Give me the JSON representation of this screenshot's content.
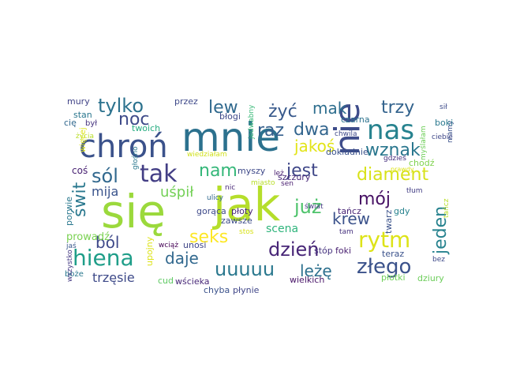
{
  "words": [
    {
      "text": "się",
      "color": "#9bd93c"
    },
    {
      "text": "jak",
      "color": "#b5de2b"
    },
    {
      "text": "mnie",
      "color": "#2c718e"
    },
    {
      "text": "chroń",
      "color": "#3b528b"
    },
    {
      "text": "nas",
      "color": "#26828e"
    },
    {
      "text": "nie",
      "color": "#3e4c8a"
    },
    {
      "text": "hiena",
      "color": "#1f9e89"
    },
    {
      "text": "tak",
      "color": "#433e85"
    },
    {
      "text": "rytm",
      "color": "#dde318"
    },
    {
      "text": "złego",
      "color": "#3b528b"
    },
    {
      "text": "dzień",
      "color": "#482677"
    },
    {
      "text": "uuuuu",
      "color": "#2a788e"
    },
    {
      "text": "tylko",
      "color": "#2c728e"
    },
    {
      "text": "sól",
      "color": "#31688e"
    },
    {
      "text": "raz",
      "color": "#35608d"
    },
    {
      "text": "noc",
      "color": "#3e4a89"
    },
    {
      "text": "lew",
      "color": "#30698e"
    },
    {
      "text": "żyć",
      "color": "#38598c"
    },
    {
      "text": "trzy",
      "color": "#33638d"
    },
    {
      "text": "mak",
      "color": "#2e6e8e"
    },
    {
      "text": "dwa",
      "color": "#32658e"
    },
    {
      "text": "wznak",
      "color": "#2a778e"
    },
    {
      "text": "jakoś",
      "color": "#e2e418"
    },
    {
      "text": "diament",
      "color": "#d8e219"
    },
    {
      "text": "jest",
      "color": "#3f4788"
    },
    {
      "text": "nam",
      "color": "#35b779"
    },
    {
      "text": "mija",
      "color": "#3a548c"
    },
    {
      "text": "uśpił",
      "color": "#73d056"
    },
    {
      "text": "już",
      "color": "#4ec36b"
    },
    {
      "text": "mój",
      "color": "#471164"
    },
    {
      "text": "krew",
      "color": "#3b528b"
    },
    {
      "text": "jeden",
      "color": "#26828e"
    },
    {
      "text": "świt",
      "color": "#2a788e"
    },
    {
      "text": "seks",
      "color": "#fde725"
    },
    {
      "text": "ból",
      "color": "#3e4989"
    },
    {
      "text": "daje",
      "color": "#31688e"
    },
    {
      "text": "leżę",
      "color": "#2d708e"
    },
    {
      "text": "trzęsie",
      "color": "#3e4a89"
    },
    {
      "text": "prowadź",
      "color": "#7ad151"
    },
    {
      "text": "scena",
      "color": "#2fb47c"
    },
    {
      "text": "stóp",
      "color": "#46337f"
    },
    {
      "text": "foki",
      "color": "#481f70"
    },
    {
      "text": "tańcz",
      "color": "#482475"
    },
    {
      "text": "twarz",
      "color": "#3b528b"
    },
    {
      "text": "gdy",
      "color": "#26828e"
    },
    {
      "text": "teraz",
      "color": "#3b528b"
    },
    {
      "text": "płotki",
      "color": "#6ece58"
    },
    {
      "text": "dziury",
      "color": "#6ccd5a"
    },
    {
      "text": "wielkich",
      "color": "#481467"
    },
    {
      "text": "płynie",
      "color": "#404688"
    },
    {
      "text": "wścieka",
      "color": "#482878"
    },
    {
      "text": "cud",
      "color": "#5ec962"
    },
    {
      "text": "boże",
      "color": "#2a788e"
    },
    {
      "text": "wszystko",
      "color": "#443983"
    },
    {
      "text": "jaś",
      "color": "#38588c"
    },
    {
      "text": "porwie",
      "color": "#2a788e"
    },
    {
      "text": "wciąż",
      "color": "#440154"
    },
    {
      "text": "unosi",
      "color": "#404688"
    },
    {
      "text": "gorąca",
      "color": "#3e4989"
    },
    {
      "text": "płoty",
      "color": "#482576"
    },
    {
      "text": "ulicy",
      "color": "#31688e"
    },
    {
      "text": "nic",
      "color": "#482878"
    },
    {
      "text": "myszy",
      "color": "#3e4989"
    },
    {
      "text": "szczury",
      "color": "#482878"
    },
    {
      "text": "miasto",
      "color": "#b8de29"
    },
    {
      "text": "sen",
      "color": "#481d6f"
    },
    {
      "text": "świat",
      "color": "#443a83"
    },
    {
      "text": "tłum",
      "color": "#433e85"
    },
    {
      "text": "tam",
      "color": "#46327e"
    },
    {
      "text": "bez",
      "color": "#3e4a89"
    },
    {
      "text": "chodź",
      "color": "#7fd34e"
    },
    {
      "text": "gdzieś",
      "color": "#46307e"
    },
    {
      "text": "prawdy",
      "color": "#dde318"
    },
    {
      "text": "myślałam",
      "color": "#6ece58"
    },
    {
      "text": "mamy",
      "color": "#3b518b"
    },
    {
      "text": "ciebie",
      "color": "#3f4788"
    },
    {
      "text": "boki",
      "color": "#2a788e"
    },
    {
      "text": "sił",
      "color": "#3e4c8a"
    },
    {
      "text": "chwila",
      "color": "#3e4989"
    },
    {
      "text": "czarna",
      "color": "#2c728e"
    },
    {
      "text": "jedwabny",
      "color": "#38b977"
    },
    {
      "text": "przez",
      "color": "#3e4989"
    },
    {
      "text": "mury",
      "color": "#404387"
    },
    {
      "text": "stan",
      "color": "#2a768e"
    },
    {
      "text": "cię",
      "color": "#31688e"
    },
    {
      "text": "był",
      "color": "#46337f"
    },
    {
      "text": "twoich",
      "color": "#27ad81"
    },
    {
      "text": "życia",
      "color": "#b8de29"
    },
    {
      "text": "więcej",
      "color": "#dde318"
    },
    {
      "text": "głośno",
      "color": "#2a788e"
    },
    {
      "text": "coś",
      "color": "#482173"
    },
    {
      "text": "chyba",
      "color": "#3b528b"
    },
    {
      "text": "błogi",
      "color": "#3e4989"
    },
    {
      "text": "upojny",
      "color": "#dde318"
    },
    {
      "text": "wiedziałam",
      "color": "#d0e11c"
    },
    {
      "text": "zawsze",
      "color": "#3e4c8a"
    },
    {
      "text": "dokładnie",
      "color": "#3b528b"
    },
    {
      "text": "leż",
      "color": "#481d6f"
    },
    {
      "text": "stos",
      "color": "#d8e219"
    },
    {
      "text": "tańcz",
      "color": "#b8de29"
    }
  ]
}
